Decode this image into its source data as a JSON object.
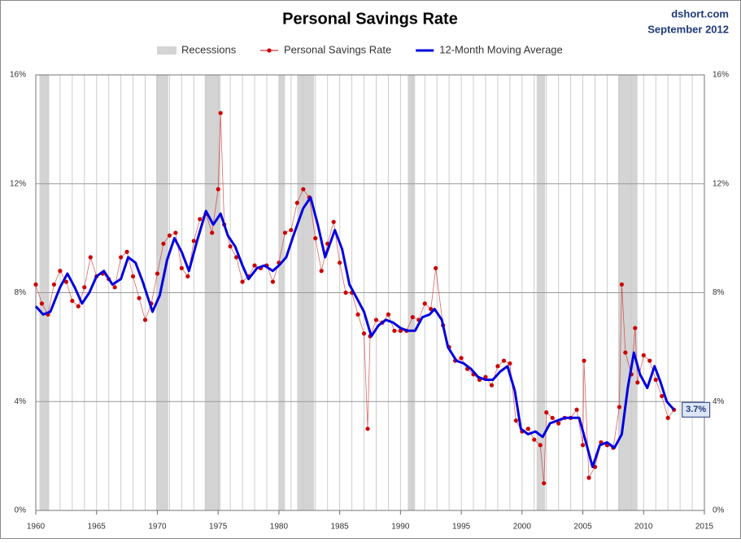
{
  "chart_data": {
    "type": "line",
    "title": "Personal Savings Rate",
    "source": "dshort.com",
    "date": "September 2012",
    "xlim": [
      1960,
      2015
    ],
    "xticks": [
      1960,
      1965,
      1970,
      1975,
      1980,
      1985,
      1990,
      1995,
      2000,
      2005,
      2010,
      2015
    ],
    "ylim": [
      0,
      16
    ],
    "yticks": [
      {
        "value": 0,
        "label": "0%"
      },
      {
        "value": 4,
        "label": "4%"
      },
      {
        "value": 8,
        "label": "8%"
      },
      {
        "value": 12,
        "label": "12%"
      },
      {
        "value": 16,
        "label": "16%"
      }
    ],
    "grid": true,
    "legend": "top",
    "recessions": {
      "name": "Recessions",
      "color": "#d4d4d4",
      "spans": [
        [
          1960.3,
          1961.1
        ],
        [
          1969.9,
          1970.9
        ],
        [
          1973.9,
          1975.2
        ],
        [
          1980.0,
          1980.5
        ],
        [
          1981.5,
          1982.9
        ],
        [
          1990.6,
          1991.2
        ],
        [
          2001.2,
          2001.9
        ],
        [
          2007.9,
          2009.5
        ]
      ]
    },
    "series": [
      {
        "name": "Personal Savings Rate",
        "color": "#cc0000",
        "style": "dots",
        "x": [
          1960.0,
          1960.5,
          1961.0,
          1961.5,
          1962.0,
          1962.5,
          1963.0,
          1963.5,
          1964.0,
          1964.5,
          1965.0,
          1965.5,
          1966.0,
          1966.5,
          1967.0,
          1967.5,
          1968.0,
          1968.5,
          1969.0,
          1969.5,
          1970.0,
          1970.5,
          1971.0,
          1971.5,
          1972.0,
          1972.5,
          1973.0,
          1973.5,
          1974.0,
          1974.5,
          1975.0,
          1975.2,
          1975.5,
          1976.0,
          1976.5,
          1977.0,
          1977.5,
          1978.0,
          1978.5,
          1979.0,
          1979.5,
          1980.0,
          1980.5,
          1981.0,
          1981.5,
          1982.0,
          1982.5,
          1983.0,
          1983.5,
          1984.0,
          1984.5,
          1985.0,
          1985.5,
          1986.0,
          1986.5,
          1987.0,
          1987.3,
          1987.5,
          1988.0,
          1988.5,
          1989.0,
          1989.5,
          1990.0,
          1990.5,
          1991.0,
          1991.5,
          1992.0,
          1992.5,
          1992.9,
          1993.5,
          1994.0,
          1994.5,
          1995.0,
          1995.5,
          1996.0,
          1996.5,
          1997.0,
          1997.5,
          1998.0,
          1998.5,
          1999.0,
          1999.5,
          2000.0,
          2000.5,
          2001.0,
          2001.5,
          2001.8,
          2002.0,
          2002.5,
          2003.0,
          2003.5,
          2004.0,
          2004.5,
          2005.0,
          2005.1,
          2005.5,
          2006.0,
          2006.5,
          2007.0,
          2007.5,
          2008.0,
          2008.2,
          2008.5,
          2009.0,
          2009.3,
          2009.5,
          2010.0,
          2010.5,
          2011.0,
          2011.5,
          2012.0,
          2012.5
        ],
        "values": [
          8.3,
          7.6,
          7.2,
          8.3,
          8.8,
          8.4,
          7.7,
          7.5,
          8.2,
          9.3,
          8.6,
          8.7,
          8.5,
          8.2,
          9.3,
          9.5,
          8.6,
          7.8,
          7.0,
          7.6,
          8.7,
          9.8,
          10.1,
          10.2,
          8.9,
          8.6,
          9.9,
          10.7,
          10.9,
          10.2,
          11.8,
          14.6,
          10.5,
          9.7,
          9.3,
          8.4,
          8.6,
          9.0,
          8.9,
          9.0,
          8.4,
          9.1,
          10.2,
          10.3,
          11.3,
          11.8,
          11.5,
          10.0,
          8.8,
          9.8,
          10.6,
          9.1,
          8.0,
          8.0,
          7.2,
          6.5,
          3.0,
          6.4,
          7.0,
          6.9,
          7.2,
          6.6,
          6.6,
          6.6,
          7.1,
          7.0,
          7.6,
          7.4,
          8.9,
          6.8,
          6.0,
          5.5,
          5.6,
          5.2,
          5.0,
          4.8,
          4.9,
          4.6,
          5.3,
          5.5,
          5.4,
          3.3,
          2.9,
          3.0,
          2.6,
          2.4,
          1.0,
          3.6,
          3.4,
          3.2,
          3.4,
          3.4,
          3.7,
          2.4,
          5.5,
          1.2,
          1.6,
          2.5,
          2.4,
          2.3,
          3.8,
          8.3,
          5.8,
          5.0,
          6.7,
          4.7,
          5.7,
          5.5,
          4.8,
          4.2,
          3.4,
          3.7
        ]
      },
      {
        "name": "12-Month Moving Average",
        "color": "#0000e0",
        "style": "line",
        "x": [
          1960.0,
          1960.6,
          1961.2,
          1962.0,
          1962.6,
          1963.2,
          1963.8,
          1964.4,
          1965.0,
          1965.6,
          1966.3,
          1967.0,
          1967.6,
          1968.2,
          1968.8,
          1969.6,
          1970.2,
          1970.8,
          1971.4,
          1972.0,
          1972.6,
          1973.2,
          1974.0,
          1974.6,
          1975.2,
          1975.8,
          1976.4,
          1977.0,
          1977.5,
          1978.2,
          1978.8,
          1979.5,
          1980.0,
          1980.6,
          1981.2,
          1982.0,
          1982.6,
          1983.2,
          1983.8,
          1984.6,
          1985.2,
          1985.8,
          1986.4,
          1987.0,
          1987.6,
          1988.2,
          1988.8,
          1989.4,
          1990.0,
          1990.6,
          1991.2,
          1991.8,
          1992.4,
          1992.8,
          1993.4,
          1993.9,
          1994.6,
          1995.2,
          1995.8,
          1996.4,
          1997.0,
          1997.6,
          1998.2,
          1998.8,
          1999.4,
          1999.9,
          2000.5,
          2001.1,
          2001.7,
          2002.3,
          2002.9,
          2003.5,
          2004.1,
          2004.7,
          2005.2,
          2005.8,
          2006.4,
          2007.0,
          2007.6,
          2008.2,
          2008.7,
          2009.2,
          2009.7,
          2010.3,
          2010.9,
          2011.4,
          2011.9,
          2012.5
        ],
        "values": [
          7.5,
          7.2,
          7.3,
          8.2,
          8.7,
          8.2,
          7.6,
          8.0,
          8.6,
          8.8,
          8.3,
          8.5,
          9.3,
          9.1,
          8.4,
          7.3,
          7.9,
          9.2,
          10.0,
          9.5,
          8.8,
          9.8,
          11.0,
          10.5,
          10.9,
          10.1,
          9.7,
          9.0,
          8.5,
          8.9,
          9.0,
          8.8,
          9.0,
          9.3,
          10.1,
          11.1,
          11.5,
          10.5,
          9.3,
          10.3,
          9.6,
          8.3,
          7.8,
          7.3,
          6.4,
          6.8,
          7.0,
          6.9,
          6.7,
          6.6,
          6.6,
          7.1,
          7.2,
          7.4,
          7.0,
          6.0,
          5.5,
          5.4,
          5.2,
          4.9,
          4.8,
          4.8,
          5.1,
          5.3,
          4.4,
          3.0,
          2.8,
          2.9,
          2.7,
          3.2,
          3.3,
          3.4,
          3.4,
          3.4,
          2.6,
          1.6,
          2.4,
          2.5,
          2.3,
          2.8,
          4.5,
          5.8,
          5.0,
          4.5,
          5.3,
          4.7,
          4.0,
          3.7
        ]
      }
    ],
    "annotations": [
      {
        "x": 2012.5,
        "y": 3.7,
        "text": "3.7%"
      }
    ]
  }
}
